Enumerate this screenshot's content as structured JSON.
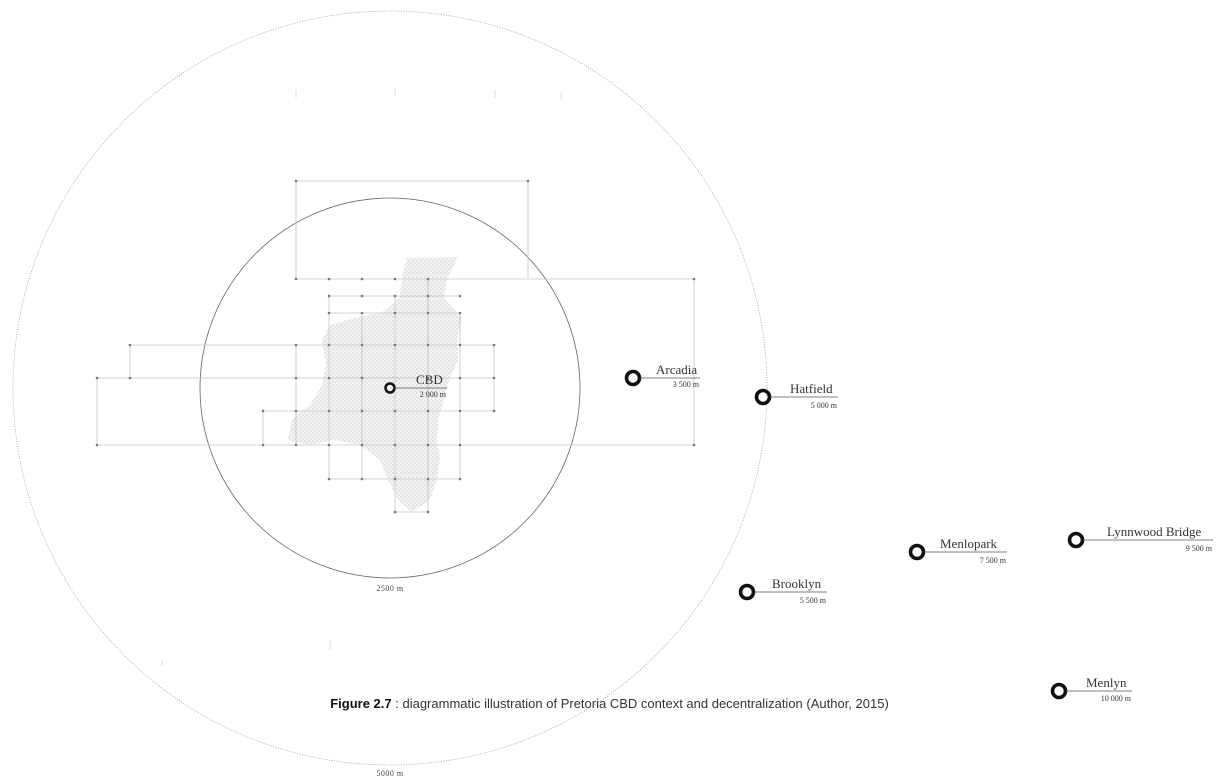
{
  "diagram": {
    "rings": {
      "inner_label": "2500 m",
      "outer_label": "5000 m"
    },
    "nodes": [
      {
        "name": "CBD",
        "distance": "2 000 m"
      },
      {
        "name": "Arcadia",
        "distance": "3 500 m"
      },
      {
        "name": "Hatfield",
        "distance": "5 000 m"
      },
      {
        "name": "Brooklyn",
        "distance": "5 500 m"
      },
      {
        "name": "Menlopark",
        "distance": "7 500 m"
      },
      {
        "name": "Lynnwood Bridge",
        "distance": "9 500 m"
      },
      {
        "name": "Menlyn",
        "distance": "10 000 m"
      }
    ]
  },
  "caption": {
    "prefix": "Figure 2.7",
    "text": " : diagrammatic illustration of Pretoria CBD context and decentralization (Author, 2015)"
  }
}
